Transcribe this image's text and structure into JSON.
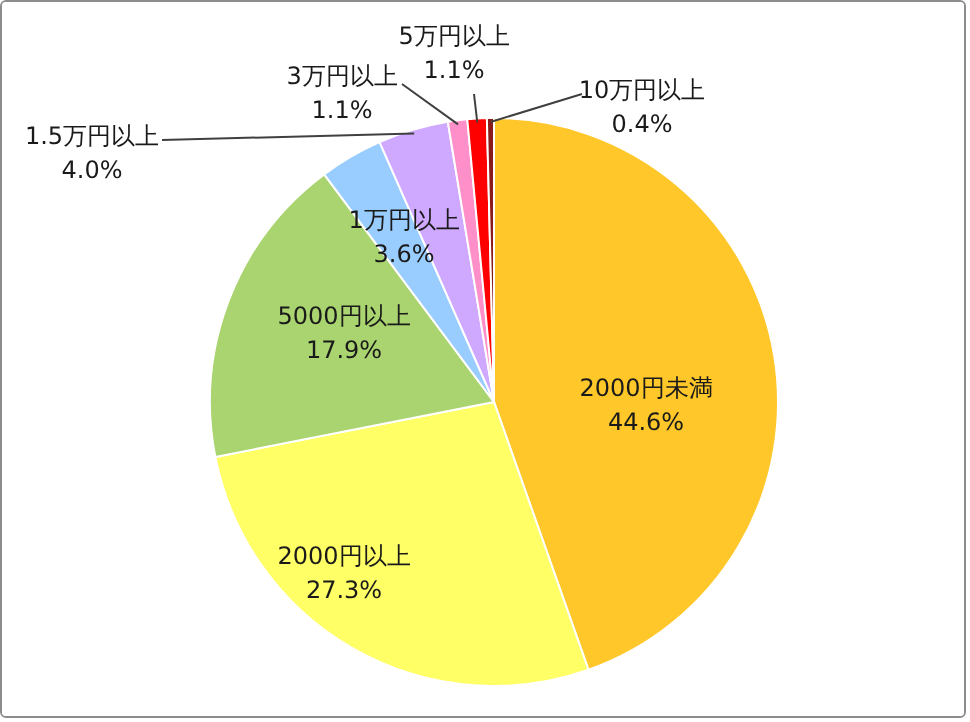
{
  "chart_data": {
    "type": "pie",
    "categories": [
      "2000円未満",
      "2000円以上",
      "5000円以上",
      "1万円以上",
      "1.5万円以上",
      "3万円以上",
      "5万円以上",
      "10万円以上"
    ],
    "values": [
      44.6,
      27.3,
      17.9,
      3.6,
      4.0,
      1.1,
      1.1,
      0.4
    ],
    "value_labels": [
      "44.6%",
      "27.3%",
      "17.9%",
      "3.6%",
      "4.0%",
      "1.1%",
      "1.1%",
      "0.4%"
    ],
    "colors": [
      "#ffc729",
      "#ffff66",
      "#a9d46f",
      "#99ccff",
      "#cfa8ff",
      "#ff8fc8",
      "#ff0000",
      "#8b1a1a"
    ]
  }
}
